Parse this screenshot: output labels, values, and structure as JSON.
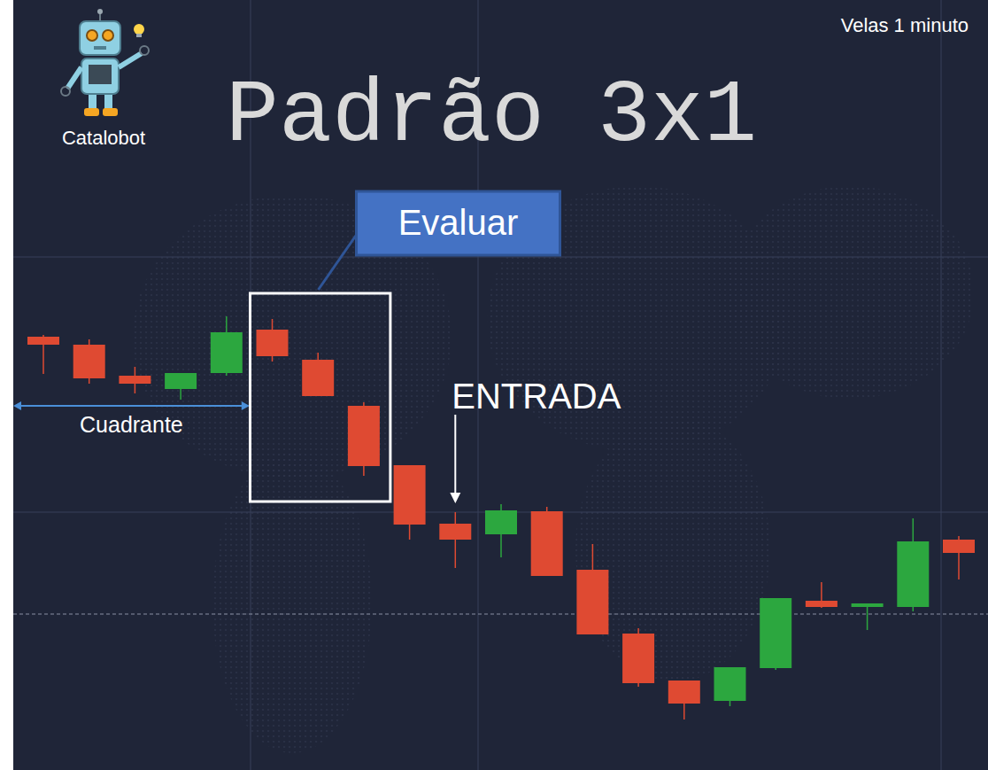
{
  "chart_data": {
    "type": "candlestick",
    "title": "Padrão 3x1",
    "subtitle": "Velas 1 minuto",
    "brand": "Catalobot",
    "categories": [
      null,
      null,
      null,
      null,
      null,
      null,
      null,
      null,
      null,
      null,
      null,
      null,
      null,
      null,
      null,
      null,
      null,
      null,
      null,
      null,
      null
    ],
    "open": [
      48.9,
      48.0,
      44.5,
      43.0,
      44.8,
      49.7,
      46.3,
      41.1,
      34.4,
      27.8,
      26.6,
      29.2,
      22.6,
      15.4,
      10.1,
      7.8,
      11.5,
      19.1,
      18.4,
      18.4,
      26.0
    ],
    "high": [
      49.1,
      48.6,
      45.5,
      44.8,
      51.2,
      50.9,
      47.1,
      41.5,
      34.4,
      29.1,
      30.0,
      29.7,
      25.5,
      16.0,
      10.1,
      11.6,
      19.4,
      21.2,
      18.8,
      28.4,
      26.4
    ],
    "low": [
      44.7,
      43.6,
      42.5,
      41.8,
      44.5,
      46.1,
      42.2,
      33.2,
      26.0,
      22.8,
      24.0,
      21.9,
      15.3,
      9.4,
      5.7,
      7.2,
      11.3,
      18.3,
      15.8,
      17.9,
      21.5
    ],
    "close": [
      48.0,
      44.2,
      43.6,
      44.8,
      49.4,
      46.7,
      42.2,
      34.3,
      27.7,
      26.0,
      29.3,
      21.9,
      15.3,
      9.8,
      7.5,
      11.6,
      19.4,
      18.4,
      18.8,
      25.8,
      24.5
    ],
    "ylim": [
      0,
      86.9
    ],
    "yticks": [
      57.9,
      29.1
    ],
    "grid": true,
    "tick_labels": false,
    "price_line": 17.6,
    "annotations": [
      {
        "text": "Cuadrante",
        "from": 0,
        "to": 4
      },
      {
        "text": "Evaluar",
        "from": 5,
        "to": 7
      },
      {
        "text": "ENTRADA",
        "at": 9
      }
    ]
  }
}
